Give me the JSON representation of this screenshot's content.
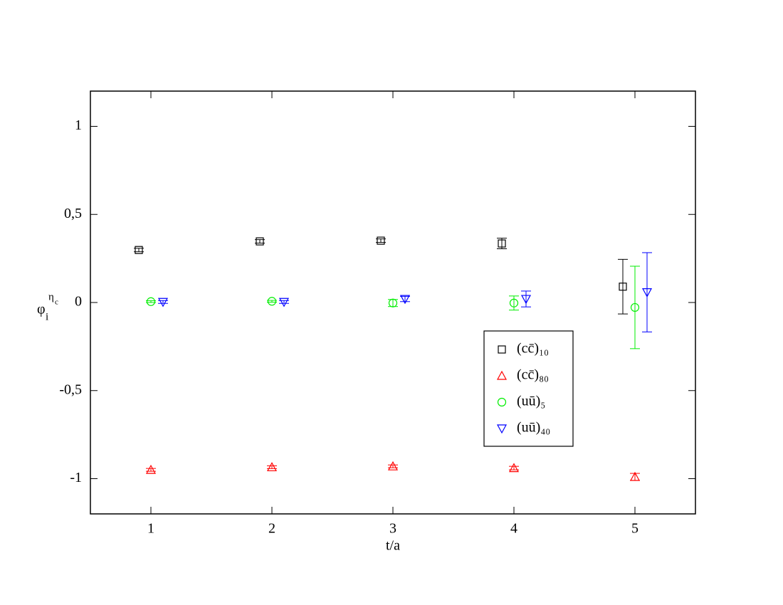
{
  "chart_data": {
    "type": "scatter",
    "xlabel": "t/a",
    "ylabel": "φ",
    "ylabel_sub": "i",
    "ylabel_sup": "η",
    "ylabel_sup_sub": "c",
    "xlim": [
      0.5,
      5.5
    ],
    "ylim": [
      -1.2,
      1.2
    ],
    "xticks": [
      1,
      2,
      3,
      4,
      5
    ],
    "yticks": [
      {
        "value": -1,
        "label": "-1"
      },
      {
        "value": -0.5,
        "label": "-0,5"
      },
      0,
      {
        "value": 0.5,
        "label": "0,5"
      },
      1
    ],
    "legend": "lower-right",
    "series": [
      {
        "name": "(cc̄)₁₀",
        "color": "#000000",
        "marker": "square",
        "x": [
          0.9,
          1.9,
          2.9,
          3.9,
          4.9
        ],
        "values": [
          0.298,
          0.347,
          0.351,
          0.335,
          0.09
        ],
        "errors": [
          0.01,
          0.01,
          0.01,
          0.03,
          0.155
        ]
      },
      {
        "name": "(cc̄)₈₀",
        "color": "#ff0000",
        "marker": "triangle",
        "x": [
          1,
          2,
          3,
          4,
          5
        ],
        "values": [
          -0.95,
          -0.935,
          -0.93,
          -0.94,
          -0.99
        ],
        "errors": [
          0.008,
          0.008,
          0.008,
          0.01,
          0.02
        ]
      },
      {
        "name": "(uū)₅",
        "color": "#00ee00",
        "marker": "circle",
        "x": [
          1,
          2,
          3,
          4,
          5
        ],
        "values": [
          0.005,
          0.007,
          -0.003,
          -0.003,
          -0.028
        ],
        "errors": [
          0.005,
          0.005,
          0.02,
          0.04,
          0.234
        ]
      },
      {
        "name": "(uū)₄₀",
        "color": "#0000ff",
        "marker": "triangle-down",
        "x": [
          1.1,
          2.1,
          3.1,
          4.1,
          5.1
        ],
        "values": [
          0.003,
          0.003,
          0.02,
          0.02,
          0.058
        ],
        "errors": [
          0.008,
          0.008,
          0.015,
          0.045,
          0.225
        ]
      }
    ]
  }
}
